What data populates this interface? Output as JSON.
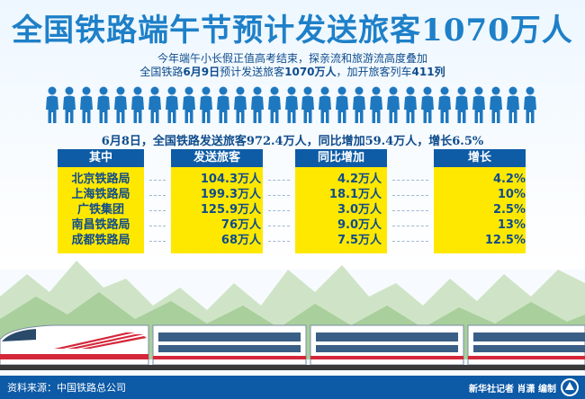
{
  "title": "全国铁路端午节预计发送旅客1070万人",
  "subtitle": {
    "line1": "今年端午小长假正值高考结束，探亲流和旅游流高度叠加",
    "line2_a": "全国铁路",
    "line2_b": "6月9日",
    "line2_c": "预计发送旅客",
    "line2_d": "1070万人",
    "line2_e": "，加开旅客列车",
    "line2_f": "411列"
  },
  "summary": "6月8日，全国铁路发送旅客972.4万人，同比增加59.4万人，增长6.5%",
  "table": {
    "headers": {
      "name": "其中",
      "passengers": "发送旅客",
      "increase": "同比增加",
      "growth": "增长"
    },
    "rows": [
      {
        "name": "北京铁路局",
        "passengers": "104.3万人",
        "increase": "4.2万人",
        "growth": "4.2%"
      },
      {
        "name": "上海铁路局",
        "passengers": "199.3万人",
        "increase": "18.1万人",
        "growth": "10%"
      },
      {
        "name": "广铁集团",
        "passengers": "125.9万人",
        "increase": "3.0万人",
        "growth": "2.5%"
      },
      {
        "name": "南昌铁路局",
        "passengers": "76万人",
        "increase": "9.0万人",
        "growth": "13%"
      },
      {
        "name": "成都铁路局",
        "passengers": "68万人",
        "increase": "7.5万人",
        "growth": "12.5%"
      }
    ]
  },
  "footer": {
    "source": "资料来源：中国铁路总公司",
    "credit": "新华社记者 肖潇 编制"
  },
  "colors": {
    "title_blue": "#1e80c8",
    "dark_blue": "#0f4c8c",
    "header_blue": "#0f5ca6",
    "yellow": "#ffe800",
    "person_blue": "#1e78bf",
    "mountain_green": "#bcd9b4"
  },
  "icons": {
    "person": "person-icon",
    "logo": "xinhua-logo"
  }
}
